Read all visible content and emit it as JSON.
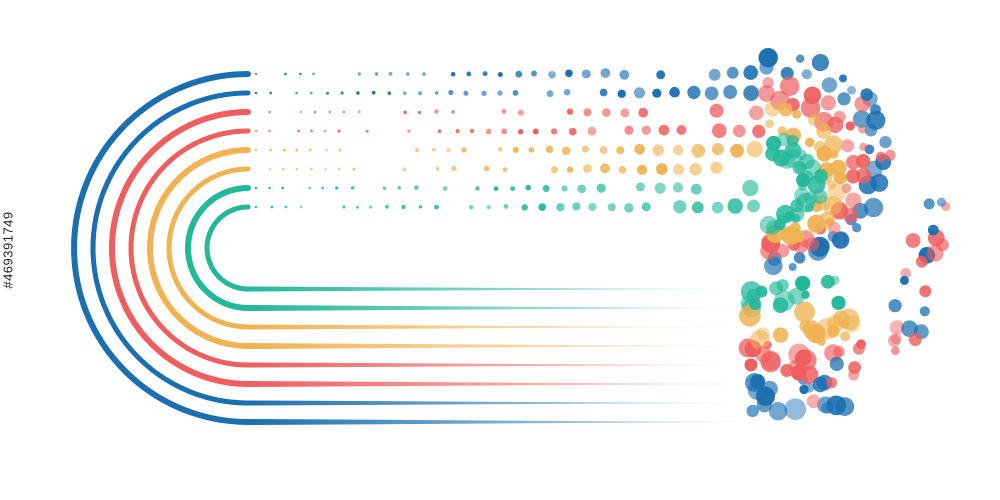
{
  "artwork": {
    "description_name": "abstract-dotted-track-lines",
    "palette": {
      "blue": "#1a6fb0",
      "red": "#ee5e5f",
      "yellow": "#efb354",
      "teal": "#23b89a"
    },
    "band_colors": [
      "blue",
      "blue",
      "red",
      "red",
      "yellow",
      "yellow",
      "teal",
      "teal"
    ]
  },
  "watermark": {
    "stock_id": "#469391749"
  }
}
